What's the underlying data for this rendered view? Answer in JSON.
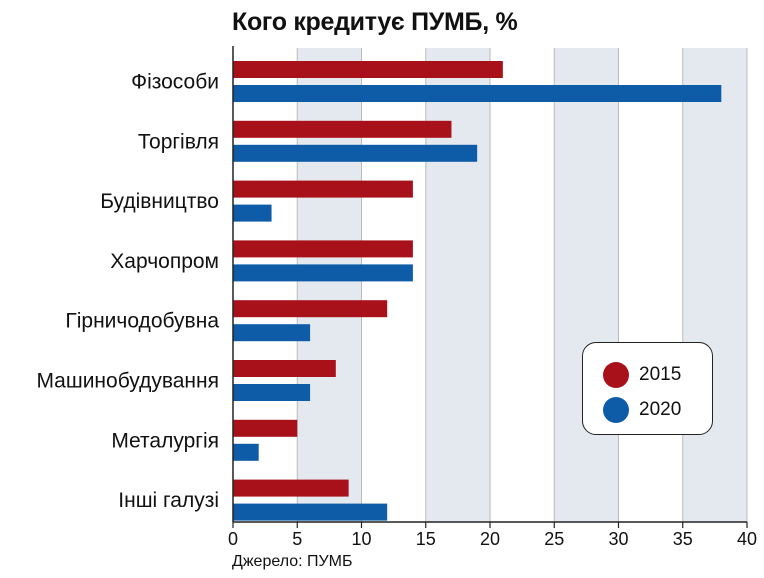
{
  "title": "Кого кредитує ПУМБ, %",
  "source": "Джерело: ПУМБ",
  "colors": {
    "s2015": "#a8111a",
    "s2020": "#0e5ca8",
    "band": "#e3e9ee",
    "grid": "#bbbbbb",
    "axis": "#222222"
  },
  "legend": {
    "items": [
      "2015",
      "2020"
    ]
  },
  "chart_data": {
    "type": "bar",
    "orientation": "horizontal",
    "title": "Кого кредитує ПУМБ, %",
    "xlabel": "",
    "ylabel": "",
    "xlim": [
      0,
      40
    ],
    "xticks": [
      0,
      5,
      10,
      15,
      20,
      25,
      30,
      35,
      40
    ],
    "shaded_bands": [
      [
        5,
        10
      ],
      [
        15,
        20
      ],
      [
        25,
        30
      ],
      [
        35,
        40
      ]
    ],
    "legend_position": "lower-right",
    "categories": [
      "Фізособи",
      "Торгівля",
      "Будівництво",
      "Харчопром",
      "Гірничодобувна",
      "Машинобудування",
      "Металургія",
      "Інші галузі"
    ],
    "series": [
      {
        "name": "2015",
        "color": "#a8111a",
        "values": [
          21,
          17,
          14,
          14,
          12,
          8,
          5,
          9
        ]
      },
      {
        "name": "2020",
        "color": "#0e5ca8",
        "values": [
          38,
          19,
          3,
          14,
          6,
          6,
          2,
          12
        ]
      }
    ]
  }
}
